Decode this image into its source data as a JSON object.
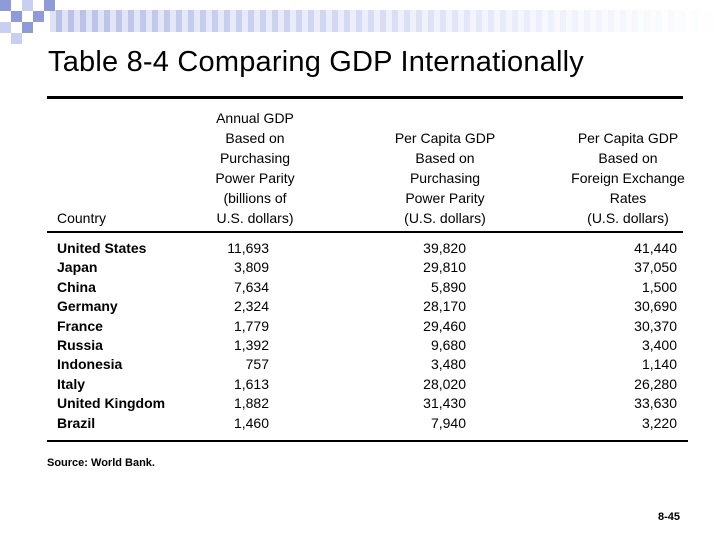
{
  "title": {
    "label": "Table 8-4",
    "text": "Comparing GDP Internationally"
  },
  "table": {
    "headers": {
      "country": "Country",
      "col1": [
        "Annual GDP",
        "Based on",
        "Purchasing",
        "Power Parity",
        "(billions of",
        "U.S. dollars)"
      ],
      "col2": [
        "Per Capita GDP",
        "Based on",
        "Purchasing",
        "Power Parity",
        "(U.S. dollars)"
      ],
      "col3": [
        "Per Capita GDP",
        "Based on",
        "Foreign Exchange",
        "Rates",
        "(U.S. dollars)"
      ]
    },
    "rows": [
      {
        "country": "United States",
        "gdp_ppp": "11,693",
        "pc_ppp": "39,820",
        "pc_fx": "41,440"
      },
      {
        "country": "Japan",
        "gdp_ppp": "3,809",
        "pc_ppp": "29,810",
        "pc_fx": "37,050"
      },
      {
        "country": "China",
        "gdp_ppp": "7,634",
        "pc_ppp": "5,890",
        "pc_fx": "1,500"
      },
      {
        "country": "Germany",
        "gdp_ppp": "2,324",
        "pc_ppp": "28,170",
        "pc_fx": "30,690"
      },
      {
        "country": "France",
        "gdp_ppp": "1,779",
        "pc_ppp": "29,460",
        "pc_fx": "30,370"
      },
      {
        "country": "Russia",
        "gdp_ppp": "1,392",
        "pc_ppp": "9,680",
        "pc_fx": "3,400"
      },
      {
        "country": "Indonesia",
        "gdp_ppp": "757",
        "pc_ppp": "3,480",
        "pc_fx": "1,140"
      },
      {
        "country": "Italy",
        "gdp_ppp": "1,613",
        "pc_ppp": "28,020",
        "pc_fx": "26,280"
      },
      {
        "country": "United Kingdom",
        "gdp_ppp": "1,882",
        "pc_ppp": "31,430",
        "pc_fx": "33,630"
      },
      {
        "country": "Brazil",
        "gdp_ppp": "1,460",
        "pc_ppp": "7,940",
        "pc_fx": "3,220"
      }
    ]
  },
  "source": "Source: World Bank.",
  "page_number": "8-45",
  "colors": {
    "band": "#b8c0e8",
    "checker_dark": "#8f9bd8",
    "checker_light": "#c9cff0"
  }
}
